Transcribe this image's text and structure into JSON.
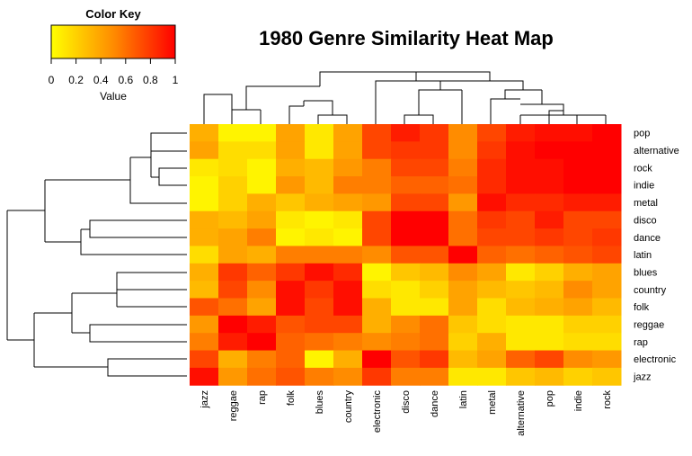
{
  "chart_data": {
    "type": "heatmap",
    "title": "1980 Genre Similarity Heat Map",
    "colors": {
      "low": "#ffff00",
      "mid": "#ff8c00",
      "high": "#ff0000"
    },
    "color_key": {
      "title": "Color Key",
      "xlabel": "Value",
      "range": [
        0,
        1
      ],
      "ticks": [
        "0",
        "0.2",
        "0.4",
        "0.6",
        "0.8",
        "1"
      ]
    },
    "rows": [
      "pop",
      "alternative",
      "rock",
      "indie",
      "metal",
      "disco",
      "dance",
      "latin",
      "blues",
      "country",
      "folk",
      "reggae",
      "rap",
      "electronic",
      "jazz"
    ],
    "columns": [
      "jazz",
      "reggae",
      "rap",
      "folk",
      "blues",
      "country",
      "electronic",
      "disco",
      "dance",
      "latin",
      "metal",
      "alternative",
      "pop",
      "indie",
      "rock"
    ],
    "values": [
      [
        0.35,
        0.05,
        0.05,
        0.4,
        0.1,
        0.4,
        0.75,
        0.9,
        0.8,
        0.5,
        0.75,
        0.9,
        0.95,
        0.95,
        1.0
      ],
      [
        0.4,
        0.15,
        0.15,
        0.4,
        0.1,
        0.4,
        0.75,
        0.8,
        0.8,
        0.5,
        0.8,
        0.95,
        1.0,
        1.0,
        1.0
      ],
      [
        0.1,
        0.15,
        0.05,
        0.35,
        0.3,
        0.45,
        0.55,
        0.75,
        0.75,
        0.55,
        0.85,
        0.95,
        0.95,
        1.0,
        1.0
      ],
      [
        0.05,
        0.2,
        0.05,
        0.45,
        0.3,
        0.55,
        0.55,
        0.65,
        0.65,
        0.6,
        0.85,
        0.95,
        0.95,
        1.0,
        1.0
      ],
      [
        0.05,
        0.2,
        0.35,
        0.25,
        0.35,
        0.4,
        0.45,
        0.75,
        0.75,
        0.45,
        0.95,
        0.85,
        0.85,
        0.9,
        0.9
      ],
      [
        0.35,
        0.3,
        0.4,
        0.1,
        0.05,
        0.1,
        0.75,
        1.0,
        1.0,
        0.6,
        0.8,
        0.75,
        0.9,
        0.75,
        0.75
      ],
      [
        0.35,
        0.4,
        0.55,
        0.05,
        0.1,
        0.05,
        0.75,
        1.0,
        1.0,
        0.6,
        0.75,
        0.75,
        0.8,
        0.75,
        0.8
      ],
      [
        0.15,
        0.4,
        0.35,
        0.55,
        0.55,
        0.55,
        0.5,
        0.7,
        0.7,
        1.0,
        0.65,
        0.6,
        0.65,
        0.7,
        0.75
      ],
      [
        0.35,
        0.8,
        0.65,
        0.8,
        0.95,
        0.85,
        0.05,
        0.25,
        0.3,
        0.5,
        0.4,
        0.1,
        0.2,
        0.35,
        0.4
      ],
      [
        0.3,
        0.75,
        0.5,
        0.95,
        0.8,
        0.95,
        0.15,
        0.1,
        0.2,
        0.4,
        0.3,
        0.25,
        0.3,
        0.5,
        0.4
      ],
      [
        0.7,
        0.6,
        0.4,
        0.95,
        0.75,
        0.95,
        0.35,
        0.1,
        0.1,
        0.4,
        0.15,
        0.3,
        0.35,
        0.4,
        0.3
      ],
      [
        0.45,
        1.0,
        0.9,
        0.7,
        0.75,
        0.75,
        0.35,
        0.5,
        0.6,
        0.25,
        0.15,
        0.1,
        0.1,
        0.2,
        0.2
      ],
      [
        0.55,
        0.9,
        1.0,
        0.65,
        0.6,
        0.55,
        0.5,
        0.55,
        0.6,
        0.2,
        0.35,
        0.1,
        0.1,
        0.15,
        0.15
      ],
      [
        0.75,
        0.35,
        0.55,
        0.65,
        0.05,
        0.35,
        1.0,
        0.7,
        0.8,
        0.3,
        0.4,
        0.65,
        0.75,
        0.5,
        0.45
      ],
      [
        0.95,
        0.45,
        0.6,
        0.7,
        0.55,
        0.5,
        0.8,
        0.55,
        0.55,
        0.1,
        0.1,
        0.25,
        0.3,
        0.2,
        0.25
      ]
    ]
  }
}
